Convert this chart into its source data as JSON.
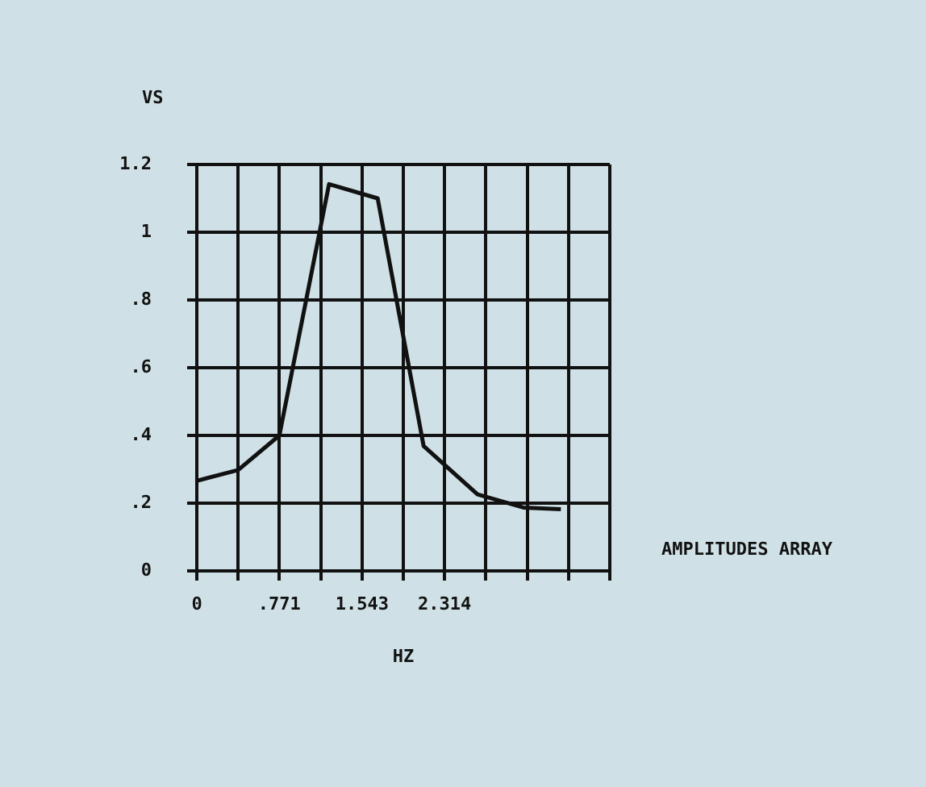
{
  "chart_data": {
    "type": "line",
    "xlabel": "HZ",
    "ylabel": "VS",
    "annotations": [
      "AMPLITUDES ARRAY"
    ],
    "x": [
      0,
      0.386,
      0.771,
      1.235,
      1.689,
      2.118,
      2.622,
      3.05,
      3.4
    ],
    "series": [
      {
        "color": "#111111",
        "values": [
          0.266,
          0.298,
          0.4,
          1.142,
          1.1,
          0.369,
          0.226,
          0.187,
          0.182
        ]
      }
    ],
    "xlim": [
      0,
      3.857
    ],
    "xticks": [
      0,
      {
        "value": 0.386,
        "label": null
      },
      {
        "value": 0.771,
        "label": ".771"
      },
      {
        "value": 1.157,
        "label": null
      },
      1.543,
      {
        "value": 1.928,
        "label": null
      },
      2.314,
      {
        "value": 2.7,
        "label": null
      },
      {
        "value": 3.085,
        "label": null
      },
      {
        "value": 3.471,
        "label": null
      },
      {
        "value": 3.857,
        "label": null
      }
    ],
    "ylim": [
      0,
      1.2
    ],
    "yticks": [
      0,
      {
        "value": 0.2,
        "label": ".2"
      },
      {
        "value": 0.4,
        "label": ".4"
      },
      {
        "value": 0.6,
        "label": ".6"
      },
      {
        "value": 0.8,
        "label": ".8"
      },
      1,
      1.2
    ],
    "grid": true,
    "marker": "none",
    "line_style": "solid"
  }
}
